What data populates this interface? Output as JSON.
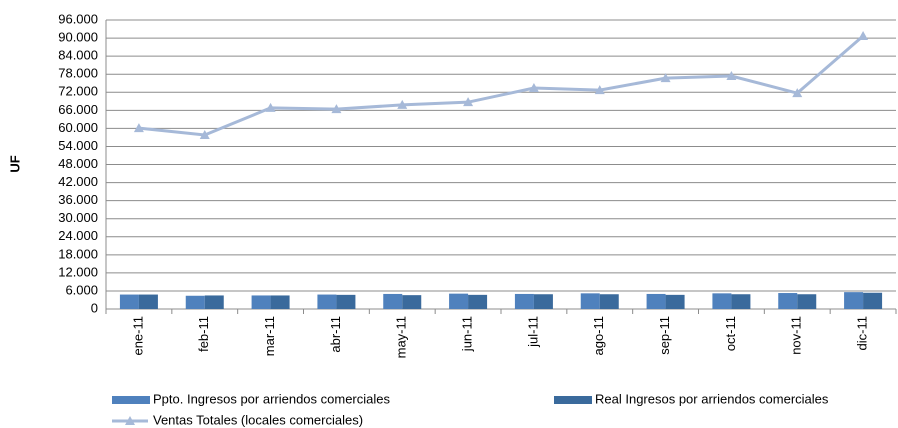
{
  "chart_data": {
    "type": "bar",
    "y_label": "UF",
    "categories": [
      "ene-11",
      "feb-11",
      "mar-11",
      "abr-11",
      "may-11",
      "jun-11",
      "jul-11",
      "ago-11",
      "sep-11",
      "oct-11",
      "nov-11",
      "dic-11"
    ],
    "series": [
      {
        "name": "Ppto. Ingresos por arriendos comerciales",
        "type": "bar",
        "color": "#4f81bd",
        "values": [
          4800,
          4400,
          4500,
          4800,
          5000,
          5100,
          5000,
          5200,
          5000,
          5200,
          5300,
          5600
        ]
      },
      {
        "name": "Real Ingresos por arriendos comerciales",
        "type": "bar",
        "color": "#3a6a9c",
        "values": [
          4800,
          4500,
          4500,
          4700,
          4600,
          4700,
          4900,
          4900,
          4700,
          4900,
          4900,
          5400
        ]
      },
      {
        "name": "Ventas Totales (locales comerciales)",
        "type": "line",
        "color": "#a6b9d8",
        "values": [
          60100,
          57800,
          66800,
          66400,
          67800,
          68700,
          73400,
          72700,
          76700,
          77400,
          71700,
          90700
        ]
      }
    ],
    "ylim": [
      0,
      96000
    ],
    "yticks": [
      0,
      {
        "value": 6000,
        "label": "6.000"
      },
      {
        "value": 12000,
        "label": "12.000"
      },
      {
        "value": 18000,
        "label": "18.000"
      },
      {
        "value": 24000,
        "label": "24.000"
      },
      {
        "value": 30000,
        "label": "30.000"
      },
      {
        "value": 36000,
        "label": "36.000"
      },
      {
        "value": 42000,
        "label": "42.000"
      },
      {
        "value": 48000,
        "label": "48.000"
      },
      {
        "value": 54000,
        "label": "54.000"
      },
      {
        "value": 60000,
        "label": "60.000"
      },
      {
        "value": 66000,
        "label": "66.000"
      },
      {
        "value": 72000,
        "label": "72.000"
      },
      {
        "value": 78000,
        "label": "78.000"
      },
      {
        "value": 84000,
        "label": "84.000"
      },
      {
        "value": 90000,
        "label": "90.000"
      },
      {
        "value": 96000,
        "label": "96.000"
      }
    ],
    "grid": true,
    "legend": "bottom"
  }
}
